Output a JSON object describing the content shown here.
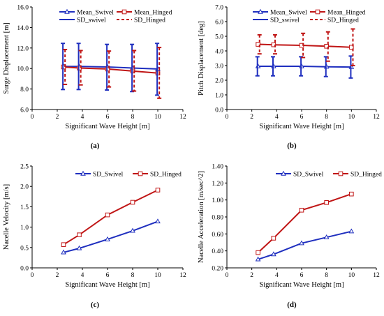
{
  "colors": {
    "swivel": "#1f2fbf",
    "hinged": "#c01515"
  },
  "chart_data": [
    {
      "id": "a",
      "type": "line",
      "caption": "(a)",
      "xlabel": "Significant Wave Height  [m]",
      "ylabel": "Surge Displacement [m]",
      "xlim": [
        0,
        12
      ],
      "ylim": [
        6.0,
        16.0
      ],
      "xticks": [
        "0",
        "2",
        "4",
        "6",
        "8",
        "10",
        "12"
      ],
      "yticks": [
        "6.0",
        "8.0",
        "10.0",
        "12.0",
        "14.0",
        "16.0"
      ],
      "grid": false,
      "legend_position": "top",
      "legend": [
        "Mean_Swivel",
        "Mean_Hinged",
        "SD_swivel",
        "SD_Hinged"
      ],
      "x": [
        2.5,
        3.75,
        6,
        8,
        10
      ],
      "series": [
        {
          "name": "Mean_Swivel",
          "kind": "line",
          "marker": "triangle",
          "color_key": "swivel",
          "values": [
            10.2,
            10.2,
            10.15,
            10.05,
            9.95
          ]
        },
        {
          "name": "Mean_Hinged",
          "kind": "line",
          "marker": "square",
          "color_key": "hinged",
          "values": [
            10.15,
            10.05,
            9.95,
            9.75,
            9.55
          ]
        },
        {
          "name": "SD_swivel",
          "kind": "errorbar",
          "dash": false,
          "color_key": "swivel",
          "dx": -0.05,
          "low": [
            7.95,
            7.95,
            7.9,
            7.75,
            7.4
          ],
          "high": [
            12.45,
            12.45,
            12.35,
            12.35,
            12.45
          ]
        },
        {
          "name": "SD_Hinged",
          "kind": "errorbar",
          "dash": true,
          "color_key": "hinged",
          "dx": 0.12,
          "low": [
            8.45,
            8.4,
            8.2,
            7.8,
            7.1
          ],
          "high": [
            11.85,
            11.75,
            11.7,
            11.75,
            12.05
          ]
        }
      ]
    },
    {
      "id": "b",
      "type": "line",
      "caption": "(b)",
      "xlabel": "Significant Wave Height  [m]",
      "ylabel": "Pitch Displacement [deg]",
      "xlim": [
        0,
        12
      ],
      "ylim": [
        0.0,
        7.0
      ],
      "xticks": [
        "0",
        "2",
        "4",
        "6",
        "8",
        "10",
        "12"
      ],
      "yticks": [
        "0.0",
        "1.0",
        "2.0",
        "3.0",
        "4.0",
        "5.0",
        "6.0",
        "7.0"
      ],
      "grid": false,
      "legend_position": "top",
      "legend": [
        "Mean_Swivel",
        "Mean_Hinged",
        "SD_swivel",
        "SD_Hinged"
      ],
      "x": [
        2.5,
        3.75,
        6,
        8,
        10
      ],
      "series": [
        {
          "name": "Mean_Swivel",
          "kind": "line",
          "marker": "triangle",
          "color_key": "swivel",
          "values": [
            2.95,
            2.95,
            2.95,
            2.92,
            2.9
          ]
        },
        {
          "name": "Mean_Hinged",
          "kind": "line",
          "marker": "square",
          "color_key": "hinged",
          "values": [
            4.45,
            4.42,
            4.38,
            4.32,
            4.25
          ]
        },
        {
          "name": "SD_swivel",
          "kind": "errorbar",
          "dash": false,
          "color_key": "swivel",
          "dx": -0.05,
          "low": [
            2.3,
            2.3,
            2.3,
            2.25,
            2.15
          ],
          "high": [
            3.6,
            3.6,
            3.6,
            3.6,
            3.65
          ]
        },
        {
          "name": "SD_Hinged",
          "kind": "errorbar",
          "dash": true,
          "color_key": "hinged",
          "dx": 0.12,
          "low": [
            3.8,
            3.8,
            3.55,
            3.3,
            3.0
          ],
          "high": [
            5.1,
            5.1,
            5.2,
            5.3,
            5.5
          ]
        }
      ]
    },
    {
      "id": "c",
      "type": "line",
      "caption": "(c)",
      "xlabel": "Significant Wave Height  [m]",
      "ylabel": "Nacelle Velocity [m/s]",
      "xlim": [
        0,
        12
      ],
      "ylim": [
        0.0,
        2.5
      ],
      "xticks": [
        "0",
        "2",
        "4",
        "6",
        "8",
        "10",
        "12"
      ],
      "yticks": [
        "0.0",
        "0.5",
        "1.0",
        "1.5",
        "2.0",
        "2.5"
      ],
      "grid": false,
      "legend_position": "top",
      "legend": [
        "SD_Swivel",
        "SD_Hinged"
      ],
      "x": [
        2.5,
        3.75,
        6,
        8,
        10
      ],
      "series": [
        {
          "name": "SD_Swivel",
          "kind": "line",
          "marker": "triangle",
          "color_key": "swivel",
          "values": [
            0.38,
            0.48,
            0.7,
            0.91,
            1.14
          ]
        },
        {
          "name": "SD_Hinged",
          "kind": "line",
          "marker": "square",
          "color_key": "hinged",
          "values": [
            0.57,
            0.81,
            1.3,
            1.61,
            1.91
          ]
        }
      ]
    },
    {
      "id": "d",
      "type": "line",
      "caption": "(d)",
      "xlabel": "Significant Wave Height  [m]",
      "ylabel": "Nacelle Acceleration [m/sec^2]",
      "xlim": [
        0,
        12
      ],
      "ylim": [
        0.2,
        1.4
      ],
      "xticks": [
        "0",
        "2",
        "4",
        "6",
        "8",
        "10",
        "12"
      ],
      "yticks": [
        "0.20",
        "0.40",
        "0.60",
        "0.80",
        "1.00",
        "1.20",
        "1.40"
      ],
      "grid": false,
      "legend_position": "top",
      "legend": [
        "SD_Swivel",
        "SD_Hinged"
      ],
      "x": [
        2.5,
        3.75,
        6,
        8,
        10
      ],
      "series": [
        {
          "name": "SD_Swivel",
          "kind": "line",
          "marker": "triangle",
          "color_key": "swivel",
          "values": [
            0.3,
            0.36,
            0.49,
            0.56,
            0.63
          ]
        },
        {
          "name": "SD_Hinged",
          "kind": "line",
          "marker": "square",
          "color_key": "hinged",
          "values": [
            0.38,
            0.55,
            0.88,
            0.97,
            1.07
          ]
        }
      ]
    }
  ]
}
